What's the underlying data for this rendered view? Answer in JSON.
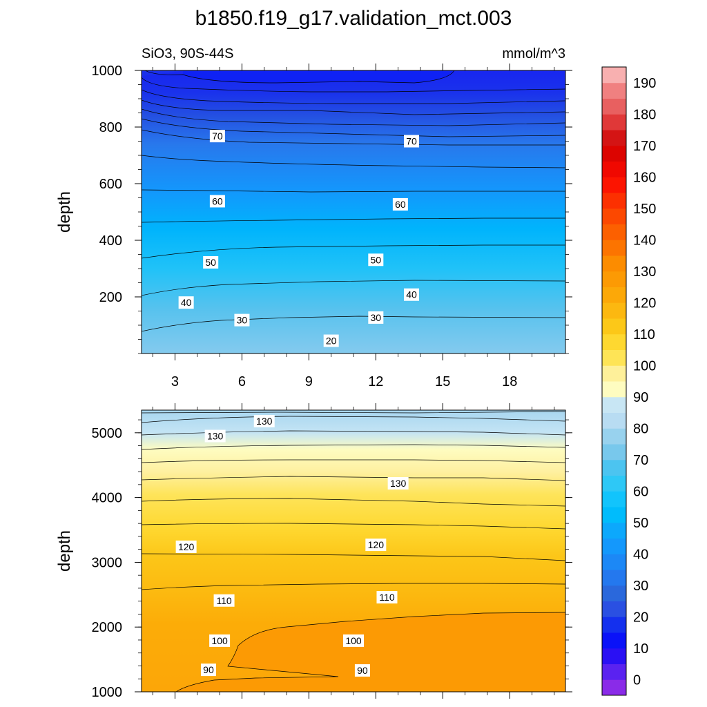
{
  "title": "b1850.f19_g17.validation_mct.003",
  "left_label": "SiO3, 90S-44S",
  "right_label": "mmol/m^3",
  "chart_data": [
    {
      "type": "contour",
      "panel": "upper",
      "ylabel": "depth",
      "xlim": [
        1.5,
        20.5
      ],
      "ylim": [
        1000,
        0
      ],
      "x_ticks": [
        "3",
        "6",
        "9",
        "12",
        "15",
        "18"
      ],
      "y_ticks": [
        "200",
        "400",
        "600",
        "800",
        "1000"
      ],
      "contour_labels": [
        {
          "text": "20",
          "x": 10.0,
          "y": 45
        },
        {
          "text": "30",
          "x": 6.0,
          "y": 118
        },
        {
          "text": "30",
          "x": 12.0,
          "y": 127
        },
        {
          "text": "40",
          "x": 3.5,
          "y": 180
        },
        {
          "text": "40",
          "x": 13.6,
          "y": 208
        },
        {
          "text": "50",
          "x": 4.6,
          "y": 322
        },
        {
          "text": "50",
          "x": 12.0,
          "y": 331
        },
        {
          "text": "60",
          "x": 4.9,
          "y": 538
        },
        {
          "text": "60",
          "x": 13.1,
          "y": 527
        },
        {
          "text": "70",
          "x": 4.9,
          "y": 768
        },
        {
          "text": "70",
          "x": 13.6,
          "y": 750
        }
      ]
    },
    {
      "type": "contour",
      "panel": "lower",
      "ylabel": "depth",
      "xlim": [
        1.5,
        20.5
      ],
      "ylim": [
        5350,
        1000
      ],
      "x_ticks": [
        "3",
        "6",
        "9",
        "12",
        "15",
        "18"
      ],
      "y_ticks": [
        "1000",
        "2000",
        "3000",
        "4000",
        "5000"
      ],
      "contour_labels": [
        {
          "text": "90",
          "x": 4.5,
          "y": 1340
        },
        {
          "text": "90",
          "x": 11.4,
          "y": 1330
        },
        {
          "text": "100",
          "x": 5.0,
          "y": 1790
        },
        {
          "text": "100",
          "x": 11.0,
          "y": 1790
        },
        {
          "text": "110",
          "x": 5.2,
          "y": 2410
        },
        {
          "text": "110",
          "x": 12.5,
          "y": 2460
        },
        {
          "text": "120",
          "x": 3.5,
          "y": 3240
        },
        {
          "text": "120",
          "x": 12.0,
          "y": 3270
        },
        {
          "text": "130",
          "x": 13.0,
          "y": 4220
        },
        {
          "text": "130",
          "x": 4.8,
          "y": 4950
        },
        {
          "text": "130",
          "x": 7.0,
          "y": 5180
        }
      ]
    },
    {
      "type": "colorbar",
      "levels": [
        -5,
        0,
        5,
        10,
        15,
        20,
        25,
        30,
        35,
        40,
        45,
        50,
        55,
        60,
        65,
        70,
        75,
        80,
        85,
        90,
        95,
        100,
        105,
        110,
        115,
        120,
        125,
        130,
        135,
        140,
        145,
        150,
        155,
        160,
        165,
        170,
        175,
        180,
        185,
        190,
        195
      ],
      "tick_labels": [
        "0",
        "10",
        "20",
        "30",
        "40",
        "50",
        "60",
        "70",
        "80",
        "90",
        "100",
        "110",
        "120",
        "130",
        "140",
        "150",
        "160",
        "170",
        "180",
        "190"
      ],
      "colors": [
        "#8a2be8",
        "#5a22f0",
        "#2a10f4",
        "#0a12f8",
        "#1430ee",
        "#2a50e2",
        "#2a68dc",
        "#2478ee",
        "#1c88f6",
        "#1498fc",
        "#0ca8fc",
        "#00bcfc",
        "#12c4fc",
        "#2ec8f6",
        "#4cc4f0",
        "#78c8ec",
        "#98d2ee",
        "#b8dcf2",
        "#c8e6f4",
        "#fefcc0",
        "#fef09a",
        "#fee456",
        "#fed830",
        "#fcc818",
        "#fcb810",
        "#fca808",
        "#fc9a04",
        "#fc8c00",
        "#fc7400",
        "#fc6000",
        "#fc4800",
        "#fc3000",
        "#fc1400",
        "#f00800",
        "#dc0400",
        "#d41414",
        "#e03838",
        "#e86060",
        "#f08080",
        "#f8b0b0"
      ]
    }
  ]
}
